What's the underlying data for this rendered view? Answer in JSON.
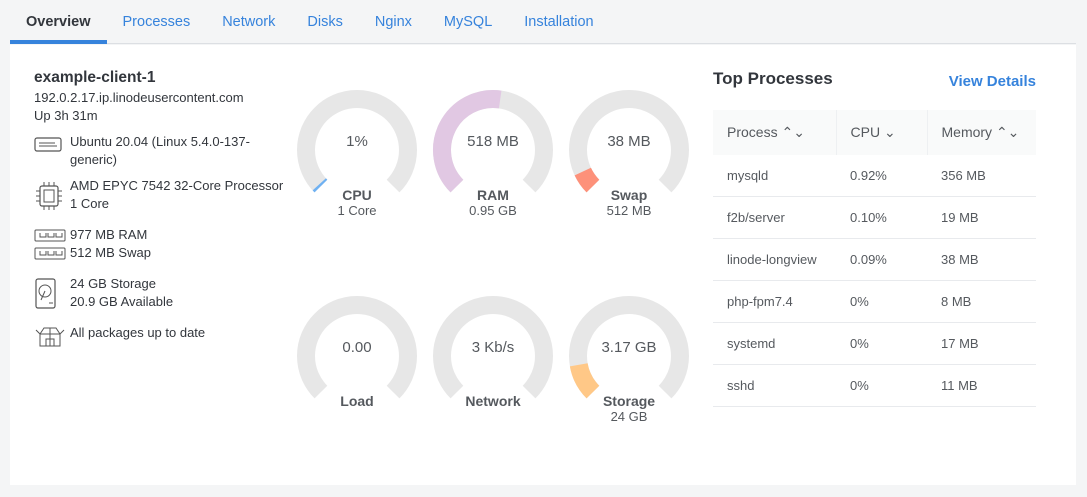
{
  "tabs": [
    "Overview",
    "Processes",
    "Network",
    "Disks",
    "Nginx",
    "MySQL",
    "Installation"
  ],
  "active_tab": 0,
  "system": {
    "hostname": "example-client-1",
    "address": "192.0.2.17.ip.linodeusercontent.com",
    "uptime": "Up 3h 31m",
    "os": "Ubuntu 20.04 (Linux 5.4.0-137-generic)",
    "cpu_model": "AMD EPYC 7542 32-Core Processor",
    "cores": "1 Core",
    "ram": "977 MB RAM",
    "swap": "512 MB Swap",
    "storage": "24 GB Storage",
    "available": "20.9 GB Available",
    "packages": "All packages up to date"
  },
  "gauges": [
    {
      "value": "1%",
      "label": "CPU",
      "sub": "1 Core",
      "fraction": 0.01,
      "color": "#6fb1f2"
    },
    {
      "value": "518 MB",
      "label": "RAM",
      "sub": "0.95 GB",
      "fraction": 0.53,
      "color": "#e1c8e3"
    },
    {
      "value": "38 MB",
      "label": "Swap",
      "sub": "512 MB",
      "fraction": 0.074,
      "color": "#fd917a"
    },
    {
      "value": "0.00",
      "label": "Load",
      "sub": "",
      "fraction": 0,
      "color": "#6fb1f2"
    },
    {
      "value": "3 Kb/s",
      "label": "Network",
      "sub": "",
      "fraction": 0,
      "color": "#6fb1f2"
    },
    {
      "value": "3.17 GB",
      "label": "Storage",
      "sub": "24 GB",
      "fraction": 0.13,
      "color": "#ffc887"
    }
  ],
  "top_processes": {
    "title": "Top Processes",
    "view_details": "View Details",
    "columns": [
      "Process",
      "CPU",
      "Memory"
    ],
    "rows": [
      [
        "mysqld",
        "0.92%",
        "356 MB"
      ],
      [
        "f2b/server",
        "0.10%",
        "19 MB"
      ],
      [
        "linode-longview",
        "0.09%",
        "38 MB"
      ],
      [
        "php-fpm7.4",
        "0%",
        "8 MB"
      ],
      [
        "systemd",
        "0%",
        "17 MB"
      ],
      [
        "sshd",
        "0%",
        "11 MB"
      ]
    ]
  },
  "colors": {
    "accent": "#3683dc",
    "track": "#e7e7e7"
  }
}
